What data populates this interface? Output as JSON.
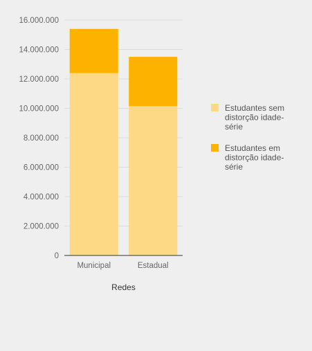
{
  "chart_data": {
    "type": "bar",
    "stacked": true,
    "categories": [
      "Municipal",
      "Estadual"
    ],
    "series": [
      {
        "name": "Estudantes sem distorção idade-série",
        "values": [
          12400000,
          10150000
        ],
        "color": "#fdd885"
      },
      {
        "name": "Estudantes em distorção idade-série",
        "values": [
          3000000,
          3350000
        ],
        "color": "#fdb200"
      }
    ],
    "xlabel": "Redes",
    "ylabel": "",
    "ylim": [
      0,
      16000000
    ],
    "yticks": [
      0,
      2000000,
      4000000,
      6000000,
      8000000,
      10000000,
      12000000,
      14000000,
      16000000
    ],
    "ytick_labels": [
      "0",
      "2.000.000",
      "4.000.000",
      "6.000.000",
      "8.000.000",
      "10.000.000",
      "12.000.000",
      "14.000.000",
      "16.000.000"
    ],
    "grid": true,
    "legend_position": "right",
    "legend_lines": [
      [
        "Estudantes sem",
        "distorção idade-",
        "série"
      ],
      [
        "Estudantes em",
        "distorção idade-",
        "série"
      ]
    ]
  }
}
